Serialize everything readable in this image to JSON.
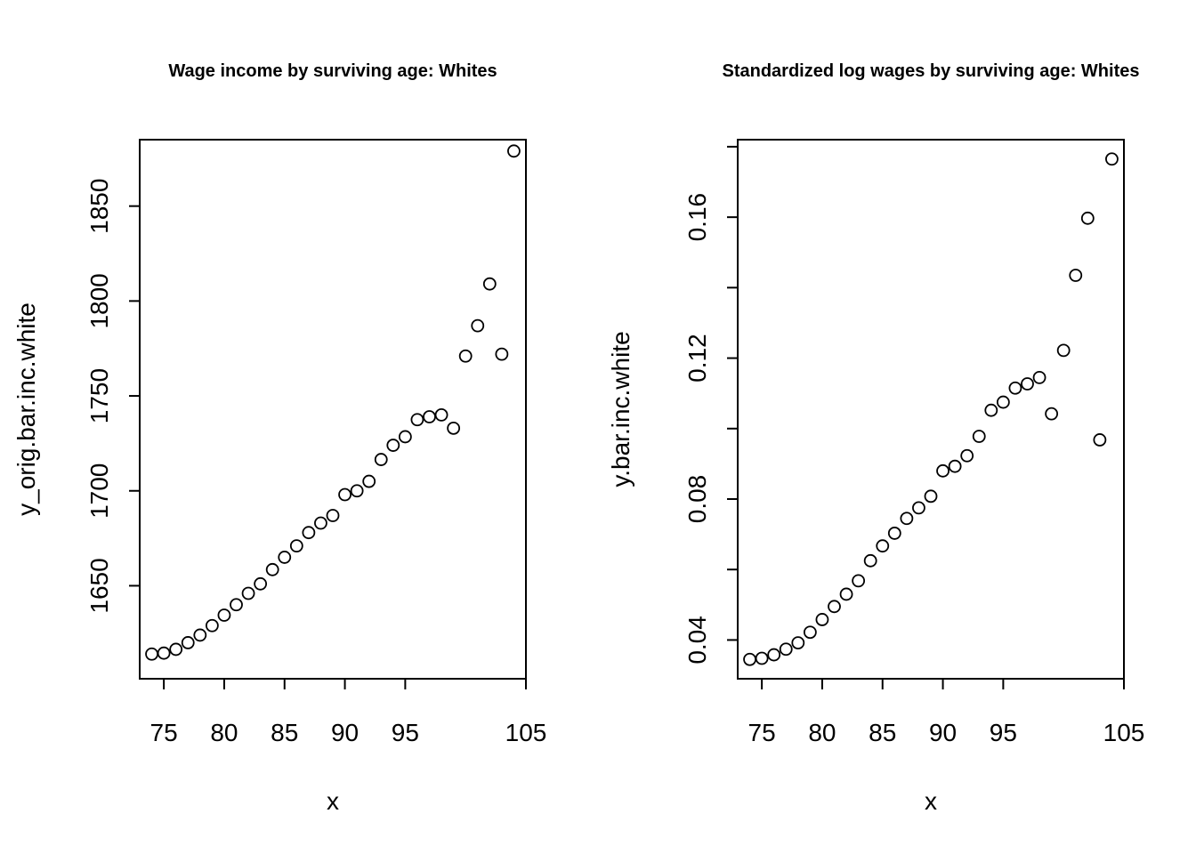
{
  "chart_data": [
    {
      "type": "scatter",
      "title": "Wage income by surviving age: Whites",
      "xlabel": "x",
      "ylabel": "y_orig.bar.inc.white",
      "xlim": [
        73,
        105
      ],
      "ylim": [
        1601,
        1885
      ],
      "xticks": [
        75,
        80,
        85,
        90,
        95,
        105
      ],
      "yticks": [
        1650,
        1700,
        1750,
        1800,
        1850
      ],
      "grid": false,
      "x": [
        74,
        75,
        76,
        77,
        78,
        79,
        80,
        81,
        82,
        83,
        84,
        85,
        86,
        87,
        88,
        89,
        90,
        91,
        92,
        93,
        94,
        95,
        96,
        97,
        98,
        99,
        100,
        101,
        102,
        103,
        104
      ],
      "y": [
        1614,
        1614.5,
        1616.5,
        1620,
        1624,
        1629,
        1634.5,
        1640,
        1646,
        1651,
        1658.5,
        1665,
        1671,
        1678,
        1683,
        1687,
        1698,
        1700,
        1705,
        1716.5,
        1724,
        1728.5,
        1737.5,
        1739,
        1740,
        1733,
        1771,
        1787,
        1809,
        1772,
        1879
      ]
    },
    {
      "type": "scatter",
      "title": "Standardized log wages by surviving age: Whites",
      "xlabel": "x",
      "ylabel": "y.bar.inc.white",
      "xlim": [
        73,
        105
      ],
      "ylim": [
        0.029,
        0.182
      ],
      "xticks": [
        75,
        80,
        85,
        90,
        95,
        105
      ],
      "yticks": [
        0.04,
        0.08,
        0.12,
        0.16
      ],
      "yticks_labeled": [
        0.04,
        0.08,
        0.12,
        0.16
      ],
      "yticks_minor": [
        0.06,
        0.1,
        0.14,
        0.18
      ],
      "grid": false,
      "x": [
        74,
        75,
        76,
        77,
        78,
        79,
        80,
        81,
        82,
        83,
        84,
        85,
        86,
        87,
        88,
        89,
        90,
        91,
        92,
        93,
        94,
        95,
        96,
        97,
        98,
        99,
        100,
        101,
        102,
        103,
        104
      ],
      "y": [
        0.0345,
        0.0348,
        0.0358,
        0.0374,
        0.0392,
        0.0422,
        0.0458,
        0.0495,
        0.053,
        0.0568,
        0.0625,
        0.0667,
        0.0703,
        0.0745,
        0.0775,
        0.0808,
        0.088,
        0.0893,
        0.0923,
        0.0978,
        0.1052,
        0.1075,
        0.1115,
        0.1127,
        0.1145,
        0.1042,
        0.1222,
        0.1435,
        0.1597,
        0.0968,
        0.1765
      ]
    }
  ]
}
